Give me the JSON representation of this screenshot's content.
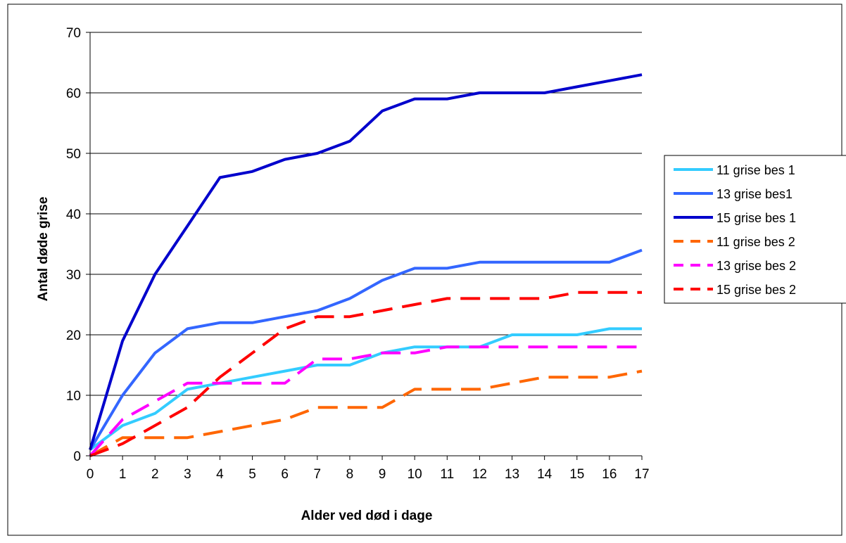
{
  "chart_data": {
    "type": "line",
    "title": "",
    "xlabel": "Alder ved død i dage",
    "ylabel": "Antal døde grise",
    "x": [
      0,
      1,
      2,
      3,
      4,
      5,
      6,
      7,
      8,
      9,
      10,
      11,
      12,
      13,
      14,
      15,
      16,
      17
    ],
    "x_tick_labels": [
      "0",
      "1",
      "2",
      "3",
      "4",
      "5",
      "6",
      "7",
      "8",
      "9",
      "10",
      "11",
      "12",
      "13",
      "14",
      "15",
      "16",
      "17"
    ],
    "xlim": [
      0,
      17
    ],
    "ylim": [
      0,
      70
    ],
    "y_ticks": [
      0,
      10,
      20,
      30,
      40,
      50,
      60,
      70
    ],
    "y_tick_labels": [
      "0",
      "10",
      "20",
      "30",
      "40",
      "50",
      "60",
      "70"
    ],
    "grid": "horizontal",
    "legend_position": "right",
    "series": [
      {
        "name": "11 grise bes 1",
        "color": "#33CCFF",
        "style": "solid",
        "values": [
          1,
          5,
          7,
          11,
          12,
          13,
          14,
          15,
          15,
          17,
          18,
          18,
          18,
          20,
          20,
          20,
          21,
          21
        ]
      },
      {
        "name": "13 grise bes1",
        "color": "#3366FF",
        "style": "solid",
        "values": [
          1,
          10,
          17,
          21,
          22,
          22,
          23,
          24,
          26,
          29,
          31,
          31,
          32,
          32,
          32,
          32,
          32,
          34
        ]
      },
      {
        "name": "15 grise bes 1",
        "color": "#0000CC",
        "style": "solid",
        "values": [
          1,
          19,
          30,
          38,
          46,
          47,
          49,
          50,
          52,
          57,
          59,
          59,
          60,
          60,
          60,
          61,
          62,
          63
        ]
      },
      {
        "name": "11 grise bes 2",
        "color": "#FF6600",
        "style": "dashed",
        "values": [
          0,
          3,
          3,
          3,
          4,
          5,
          6,
          8,
          8,
          8,
          11,
          11,
          11,
          12,
          13,
          13,
          13,
          14
        ]
      },
      {
        "name": "13 grise bes 2",
        "color": "#FF00FF",
        "style": "dashed",
        "values": [
          0,
          6,
          9,
          12,
          12,
          12,
          12,
          16,
          16,
          17,
          17,
          18,
          18,
          18,
          18,
          18,
          18,
          18
        ]
      },
      {
        "name": "15 grise bes 2",
        "color": "#FF0000",
        "style": "dashed",
        "values": [
          0,
          2,
          5,
          8,
          13,
          17,
          21,
          23,
          23,
          24,
          25,
          26,
          26,
          26,
          26,
          27,
          27,
          27
        ]
      }
    ]
  }
}
